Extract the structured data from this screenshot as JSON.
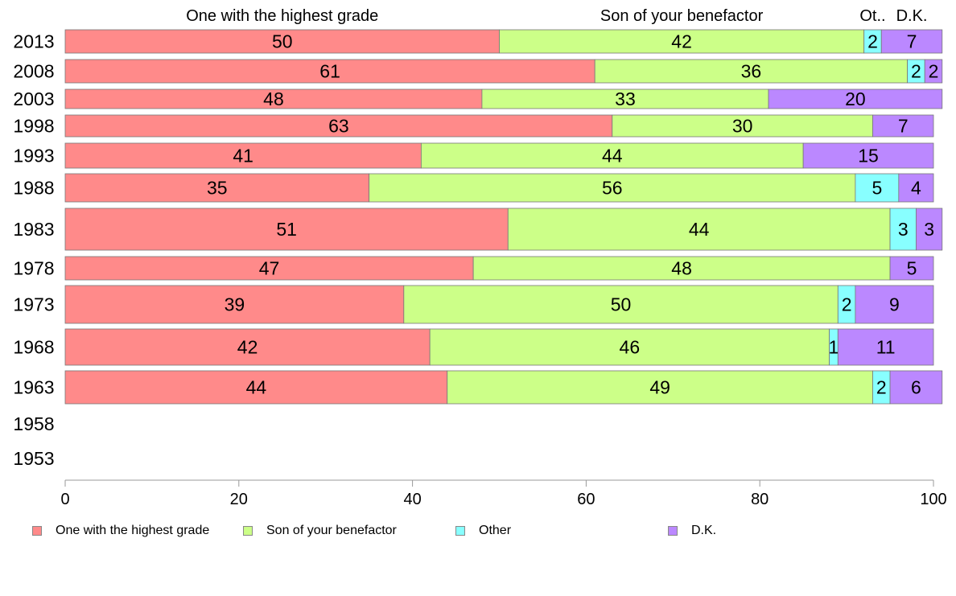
{
  "chart_data": {
    "type": "bar",
    "orientation": "horizontal",
    "stacked": true,
    "categories": [
      "2013",
      "2008",
      "2003",
      "1998",
      "1993",
      "1988",
      "1983",
      "1978",
      "1973",
      "1968",
      "1963",
      "1958",
      "1953"
    ],
    "series": [
      {
        "name": "One with the highest grade",
        "color": "#ff8a8a",
        "values": [
          50,
          61,
          48,
          63,
          41,
          35,
          51,
          47,
          39,
          42,
          44,
          null,
          null
        ]
      },
      {
        "name": "Son of your benefactor",
        "color": "#ccff88",
        "values": [
          42,
          36,
          33,
          30,
          44,
          56,
          44,
          48,
          50,
          46,
          49,
          null,
          null
        ]
      },
      {
        "name": "Other",
        "color": "#88ffff",
        "values": [
          2,
          2,
          null,
          null,
          null,
          5,
          3,
          null,
          2,
          1,
          2,
          null,
          null
        ]
      },
      {
        "name": "D.K.",
        "color": "#bb88ff",
        "values": [
          7,
          2,
          20,
          7,
          15,
          4,
          3,
          5,
          9,
          11,
          6,
          null,
          null
        ]
      }
    ],
    "top_labels": [
      "One with the highest grade",
      "Son of your benefactor",
      "Ot..",
      "D.K."
    ],
    "xlim": [
      0,
      100
    ],
    "xticks": [
      0,
      20,
      40,
      60,
      80,
      100
    ],
    "grid": false,
    "legend_position": "bottom"
  }
}
